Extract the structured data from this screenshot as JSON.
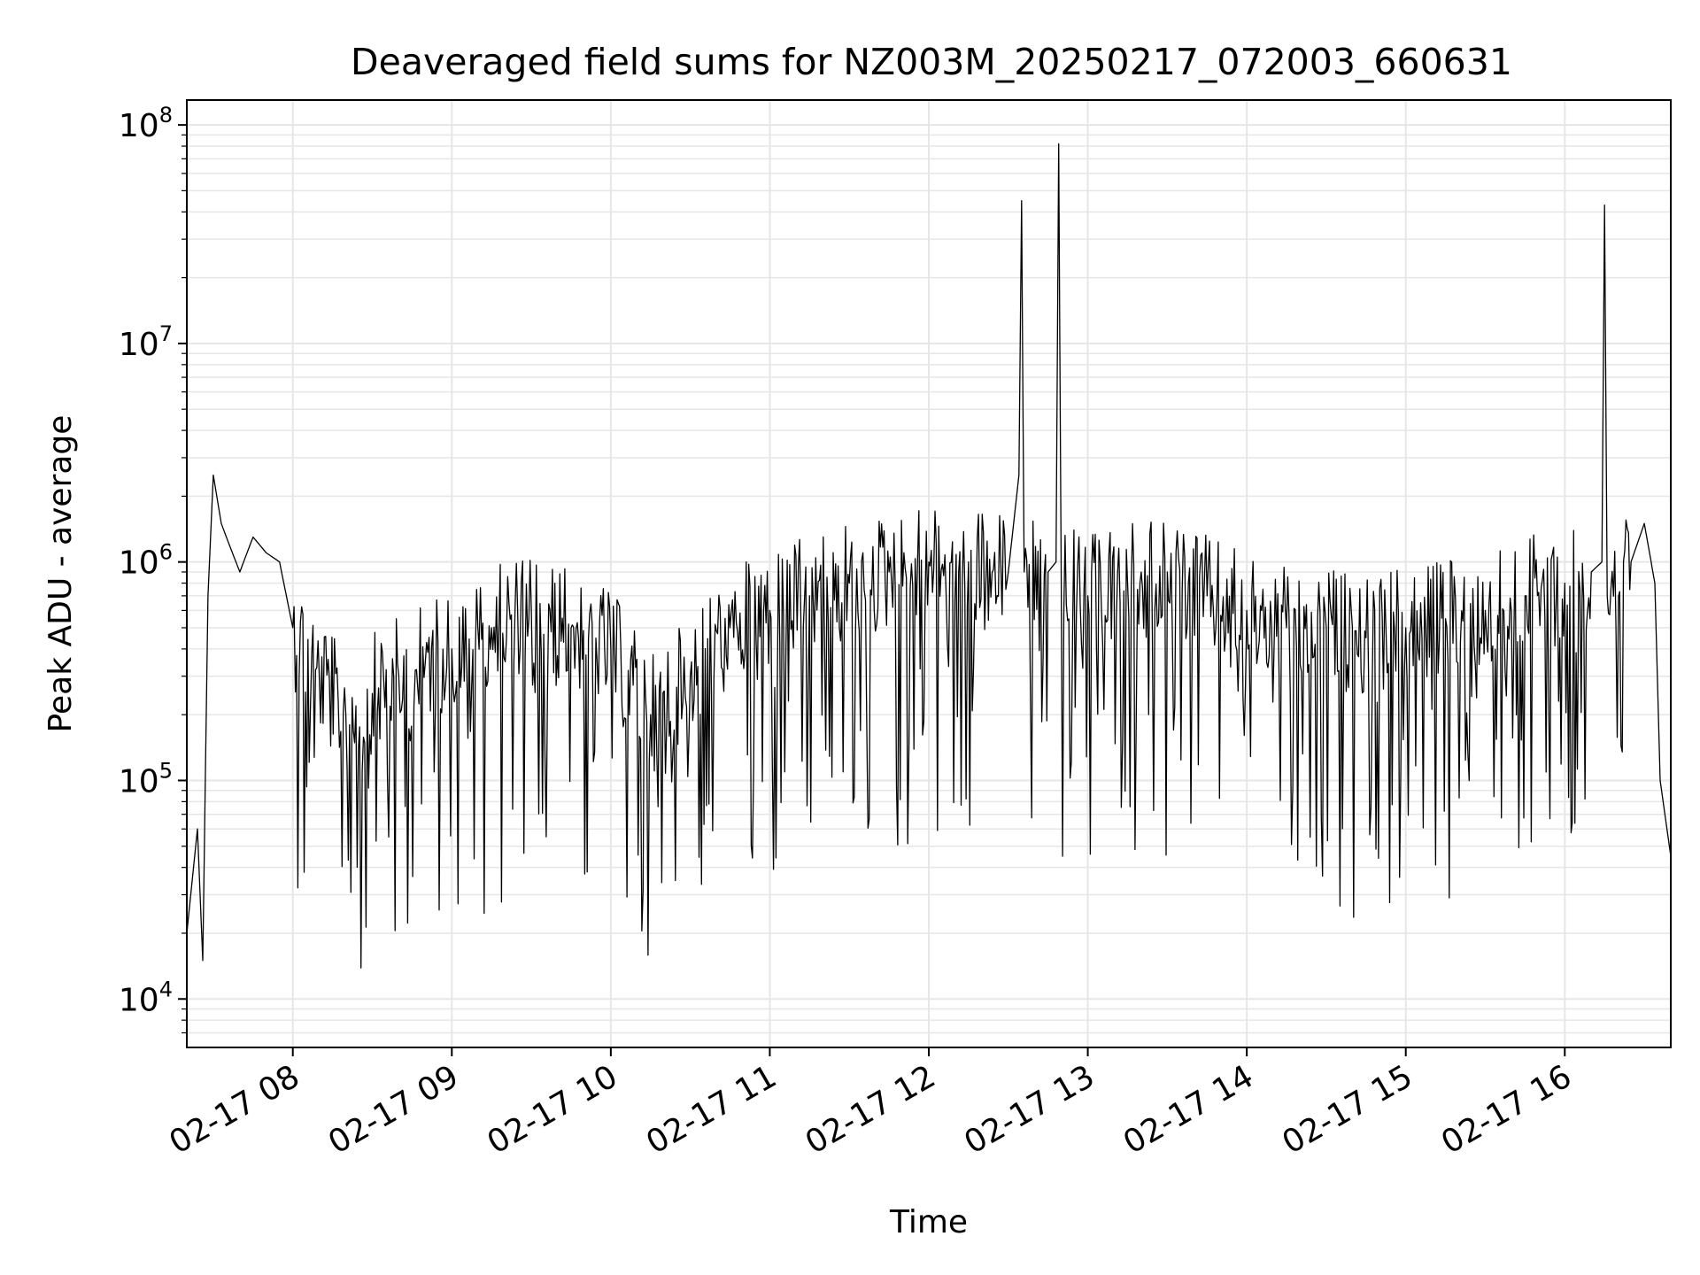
{
  "chart_data": {
    "type": "line",
    "title": "Deaveraged field sums for NZ003M_20250217_072003_660631",
    "xlabel": "Time",
    "ylabel": "Peak ADU - average",
    "x_axis": {
      "type": "time",
      "range": [
        "2025-02-17 07:20",
        "2025-02-17 16:40"
      ],
      "ticks": [
        "2025-02-17 08:00",
        "2025-02-17 09:00",
        "2025-02-17 10:00",
        "2025-02-17 11:00",
        "2025-02-17 12:00",
        "2025-02-17 13:00",
        "2025-02-17 14:00",
        "2025-02-17 15:00",
        "2025-02-17 16:00"
      ],
      "tick_labels": [
        "02-17 08",
        "02-17 09",
        "02-17 10",
        "02-17 11",
        "02-17 12",
        "02-17 13",
        "02-17 14",
        "02-17 15",
        "02-17 16"
      ],
      "tick_rotation": 30
    },
    "y_axis": {
      "scale": "log",
      "range": [
        6000,
        130000000
      ],
      "ticks": [
        10000,
        100000,
        1000000,
        10000000,
        100000000
      ],
      "tick_labels": [
        {
          "base": "10",
          "exp": "4"
        },
        {
          "base": "10",
          "exp": "5"
        },
        {
          "base": "10",
          "exp": "6"
        },
        {
          "base": "10",
          "exp": "7"
        },
        {
          "base": "10",
          "exp": "8"
        }
      ]
    },
    "grid": true,
    "minor_grid": true,
    "legend": "none",
    "line_color": "#000000",
    "grid_color": "#e6e6e6",
    "series": [
      {
        "x": [
          "2025-02-17 07:20",
          "2025-02-17 07:24",
          "2025-02-17 07:26",
          "2025-02-17 07:28",
          "2025-02-17 07:30",
          "2025-02-17 07:33",
          "2025-02-17 07:36",
          "2025-02-17 07:40",
          "2025-02-17 07:45",
          "2025-02-17 07:50",
          "2025-02-17 07:55",
          "2025-02-17 08:00",
          "2025-02-17 08:10",
          "2025-02-17 08:20",
          "2025-02-17 08:30",
          "2025-02-17 08:40",
          "2025-02-17 08:50",
          "2025-02-17 09:00",
          "2025-02-17 09:15",
          "2025-02-17 09:30",
          "2025-02-17 09:45",
          "2025-02-17 10:00",
          "2025-02-17 10:15",
          "2025-02-17 10:30",
          "2025-02-17 10:45",
          "2025-02-17 11:00",
          "2025-02-17 11:15",
          "2025-02-17 11:30",
          "2025-02-17 11:45",
          "2025-02-17 12:00",
          "2025-02-17 12:15",
          "2025-02-17 12:30",
          "2025-02-17 12:34",
          "2025-02-17 12:35",
          "2025-02-17 12:36",
          "2025-02-17 12:45",
          "2025-02-17 12:48",
          "2025-02-17 12:49",
          "2025-02-17 12:50",
          "2025-02-17 13:00",
          "2025-02-17 13:15",
          "2025-02-17 13:30",
          "2025-02-17 13:45",
          "2025-02-17 14:00",
          "2025-02-17 14:15",
          "2025-02-17 14:30",
          "2025-02-17 14:45",
          "2025-02-17 15:00",
          "2025-02-17 15:15",
          "2025-02-17 15:30",
          "2025-02-17 15:45",
          "2025-02-17 16:00",
          "2025-02-17 16:10",
          "2025-02-17 16:14",
          "2025-02-17 16:15",
          "2025-02-17 16:16",
          "2025-02-17 16:25",
          "2025-02-17 16:30",
          "2025-02-17 16:34",
          "2025-02-17 16:36",
          "2025-02-17 16:40"
        ],
        "y": [
          20000,
          60000,
          15000,
          700000,
          2500000,
          1500000,
          1200000,
          900000,
          1300000,
          1100000,
          1000000,
          500000,
          300000,
          200000,
          250000,
          300000,
          350000,
          400000,
          500000,
          600000,
          500000,
          400000,
          200000,
          300000,
          500000,
          600000,
          700000,
          800000,
          900000,
          1000000,
          1000000,
          900000,
          2500000,
          45000000,
          900000,
          900000,
          1000000,
          82000000,
          800000,
          700000,
          800000,
          900000,
          700000,
          600000,
          500000,
          500000,
          450000,
          500000,
          550000,
          600000,
          700000,
          800000,
          900000,
          1000000,
          43000000,
          700000,
          1000000,
          1500000,
          800000,
          100000,
          45000
        ]
      }
    ]
  }
}
